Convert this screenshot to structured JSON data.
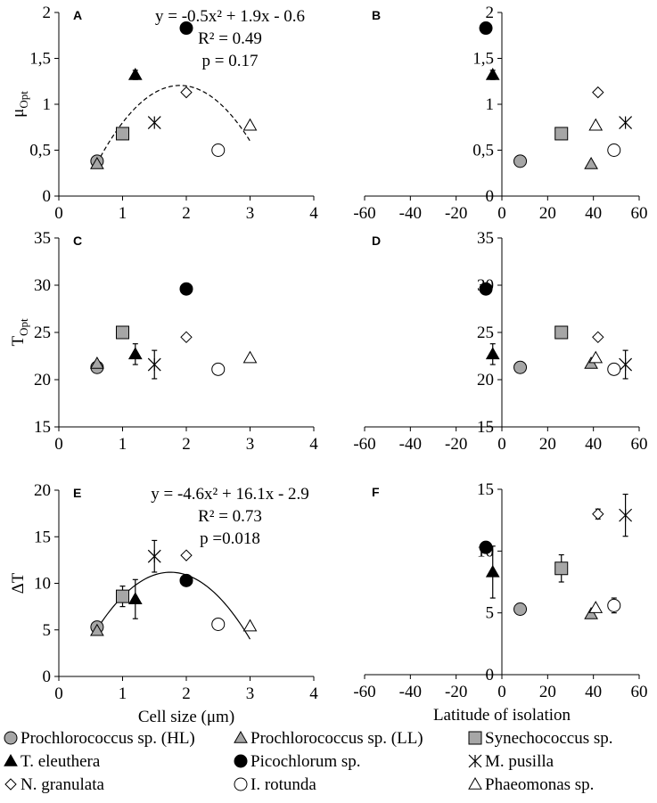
{
  "legend": [
    {
      "key": "proHL",
      "label": "Prochlorococcus sp. (HL)"
    },
    {
      "key": "proLL",
      "label": "Prochlorococcus sp. (LL)"
    },
    {
      "key": "syn",
      "label": "Synechococcus sp."
    },
    {
      "key": "tele",
      "label": "T. eleuthera"
    },
    {
      "key": "pic",
      "label": "Picochlorum sp."
    },
    {
      "key": "mpus",
      "label": "M. pusilla"
    },
    {
      "key": "ngra",
      "label": "N. granulata"
    },
    {
      "key": "irot",
      "label": "I. rotunda"
    },
    {
      "key": "phae",
      "label": "Phaeomonas sp."
    }
  ],
  "markers": {
    "proHL": {
      "shape": "circle",
      "fill": "#a6a6a6"
    },
    "proLL": {
      "shape": "triangle",
      "fill": "#a6a6a6"
    },
    "syn": {
      "shape": "square",
      "fill": "#a6a6a6"
    },
    "tele": {
      "shape": "triangle",
      "fill": "#000000"
    },
    "pic": {
      "shape": "circle",
      "fill": "#000000"
    },
    "mpus": {
      "shape": "asterisk",
      "fill": "none"
    },
    "ngra": {
      "shape": "diamond",
      "fill": "#ffffff"
    },
    "irot": {
      "shape": "circle",
      "fill": "#ffffff"
    },
    "phae": {
      "shape": "triangle",
      "fill": "#ffffff"
    }
  },
  "chart_data": [
    {
      "id": "A",
      "type": "scatter",
      "panel_label": "A",
      "ylabel": "μ",
      "ylabel_sub": "Opt",
      "xlabel": "",
      "xlim": [
        0,
        4
      ],
      "xticks": [
        0,
        1,
        2,
        3,
        4
      ],
      "ylim": [
        0,
        2
      ],
      "yticks": [
        0,
        0.5,
        1,
        1.5,
        2
      ],
      "ytick_labels": [
        "0",
        "0,5",
        "1",
        "1,5",
        "2"
      ],
      "fit": {
        "coef": [
          -0.5,
          1.9,
          -0.6
        ],
        "xrange": [
          0.6,
          3.0
        ],
        "dashed": true
      },
      "annotation": [
        "y = -0.5x² + 1.9x - 0.6",
        "R² = 0.49",
        "p = 0.17"
      ],
      "series": [
        {
          "key": "proHL",
          "points": [
            [
              0.6,
              0.38
            ]
          ]
        },
        {
          "key": "proLL",
          "points": [
            [
              0.6,
              0.35
            ]
          ]
        },
        {
          "key": "syn",
          "points": [
            [
              1.0,
              0.68
            ]
          ]
        },
        {
          "key": "tele",
          "points": [
            [
              1.2,
              1.32
            ]
          ],
          "err": [
            0.05
          ]
        },
        {
          "key": "pic",
          "points": [
            [
              2.0,
              1.83
            ]
          ]
        },
        {
          "key": "mpus",
          "points": [
            [
              1.5,
              0.8
            ]
          ]
        },
        {
          "key": "ngra",
          "points": [
            [
              2.0,
              1.13
            ]
          ]
        },
        {
          "key": "irot",
          "points": [
            [
              2.5,
              0.5
            ]
          ]
        },
        {
          "key": "phae",
          "points": [
            [
              3.0,
              0.77
            ]
          ]
        }
      ]
    },
    {
      "id": "B",
      "type": "scatter",
      "panel_label": "B",
      "ylabel": "",
      "xlabel": "",
      "xlim": [
        -60,
        60
      ],
      "xticks": [
        -60,
        -40,
        -20,
        0,
        20,
        40,
        60
      ],
      "ylim": [
        0,
        2
      ],
      "yticks": [
        0,
        0.5,
        1,
        1.5,
        2
      ],
      "ytick_labels": [
        "0",
        "0,5",
        "1",
        "1,5",
        "2"
      ],
      "series": [
        {
          "key": "proHL",
          "points": [
            [
              8,
              0.38
            ]
          ]
        },
        {
          "key": "proLL",
          "points": [
            [
              39,
              0.35
            ]
          ]
        },
        {
          "key": "syn",
          "points": [
            [
              26,
              0.68
            ]
          ]
        },
        {
          "key": "tele",
          "points": [
            [
              -4,
              1.32
            ]
          ],
          "err": [
            0.05
          ]
        },
        {
          "key": "pic",
          "points": [
            [
              -7,
              1.83
            ]
          ]
        },
        {
          "key": "mpus",
          "points": [
            [
              54,
              0.8
            ]
          ]
        },
        {
          "key": "ngra",
          "points": [
            [
              42,
              1.13
            ]
          ]
        },
        {
          "key": "irot",
          "points": [
            [
              49,
              0.5
            ]
          ]
        },
        {
          "key": "phae",
          "points": [
            [
              41,
              0.77
            ]
          ]
        }
      ]
    },
    {
      "id": "C",
      "type": "scatter",
      "panel_label": "C",
      "ylabel": "T",
      "ylabel_sub": "Opt",
      "xlabel": "",
      "xlim": [
        0,
        4
      ],
      "xticks": [
        0,
        1,
        2,
        3,
        4
      ],
      "ylim": [
        15,
        35
      ],
      "yticks": [
        15,
        20,
        25,
        30,
        35
      ],
      "ytick_labels": [
        "15",
        "20",
        "25",
        "30",
        "35"
      ],
      "series": [
        {
          "key": "proHL",
          "points": [
            [
              0.6,
              21.3
            ]
          ]
        },
        {
          "key": "proLL",
          "points": [
            [
              0.6,
              21.7
            ]
          ]
        },
        {
          "key": "syn",
          "points": [
            [
              1.0,
              25.0
            ]
          ],
          "err": [
            0.5
          ]
        },
        {
          "key": "tele",
          "points": [
            [
              1.2,
              22.7
            ]
          ],
          "err": [
            1.1
          ]
        },
        {
          "key": "pic",
          "points": [
            [
              2.0,
              29.6
            ]
          ]
        },
        {
          "key": "mpus",
          "points": [
            [
              1.5,
              21.6
            ]
          ],
          "err": [
            1.5
          ]
        },
        {
          "key": "ngra",
          "points": [
            [
              2.0,
              24.5
            ]
          ]
        },
        {
          "key": "irot",
          "points": [
            [
              2.5,
              21.1
            ]
          ]
        },
        {
          "key": "phae",
          "points": [
            [
              3.0,
              22.3
            ]
          ]
        }
      ]
    },
    {
      "id": "D",
      "type": "scatter",
      "panel_label": "D",
      "ylabel": "",
      "xlabel": "",
      "xlim": [
        -60,
        60
      ],
      "xticks": [
        -60,
        -40,
        -20,
        0,
        20,
        40,
        60
      ],
      "ylim": [
        15,
        35
      ],
      "yticks": [
        15,
        20,
        25,
        30,
        35
      ],
      "ytick_labels": [
        "15",
        "20",
        "25",
        "30",
        "35"
      ],
      "series": [
        {
          "key": "proHL",
          "points": [
            [
              8,
              21.3
            ]
          ]
        },
        {
          "key": "proLL",
          "points": [
            [
              39,
              21.7
            ]
          ]
        },
        {
          "key": "syn",
          "points": [
            [
              26,
              25.0
            ]
          ],
          "err": [
            0.5
          ]
        },
        {
          "key": "tele",
          "points": [
            [
              -4,
              22.7
            ]
          ],
          "err": [
            1.1
          ]
        },
        {
          "key": "pic",
          "points": [
            [
              -7,
              29.6
            ]
          ]
        },
        {
          "key": "mpus",
          "points": [
            [
              54,
              21.6
            ]
          ],
          "err": [
            1.5
          ]
        },
        {
          "key": "ngra",
          "points": [
            [
              42,
              24.5
            ]
          ]
        },
        {
          "key": "irot",
          "points": [
            [
              49,
              21.1
            ]
          ]
        },
        {
          "key": "phae",
          "points": [
            [
              41,
              22.3
            ]
          ]
        }
      ]
    },
    {
      "id": "E",
      "type": "scatter",
      "panel_label": "E",
      "ylabel": "ΔT",
      "xlabel": "Cell size (μm)",
      "xlim": [
        0,
        4
      ],
      "xticks": [
        0,
        1,
        2,
        3,
        4
      ],
      "ylim": [
        0,
        20
      ],
      "yticks": [
        0,
        5,
        10,
        15,
        20
      ],
      "ytick_labels": [
        "0",
        "5",
        "10",
        "15",
        "20"
      ],
      "fit": {
        "coef": [
          -4.6,
          16.1,
          -2.9
        ],
        "xrange": [
          0.6,
          3.0
        ],
        "dashed": false
      },
      "annotation": [
        "y = -4.6x² + 16.1x - 2.9",
        "R² = 0.73",
        "p =0.018"
      ],
      "series": [
        {
          "key": "proHL",
          "points": [
            [
              0.6,
              5.3
            ]
          ]
        },
        {
          "key": "proLL",
          "points": [
            [
              0.6,
              4.9
            ]
          ]
        },
        {
          "key": "syn",
          "points": [
            [
              1.0,
              8.6
            ]
          ],
          "err": [
            1.1
          ]
        },
        {
          "key": "tele",
          "points": [
            [
              1.2,
              8.3
            ]
          ],
          "err": [
            2.1
          ]
        },
        {
          "key": "pic",
          "points": [
            [
              2.0,
              10.3
            ]
          ]
        },
        {
          "key": "mpus",
          "points": [
            [
              1.5,
              12.9
            ]
          ],
          "err": [
            1.7
          ]
        },
        {
          "key": "ngra",
          "points": [
            [
              2.0,
              13.0
            ]
          ]
        },
        {
          "key": "irot",
          "points": [
            [
              2.5,
              5.6
            ]
          ]
        },
        {
          "key": "phae",
          "points": [
            [
              3.0,
              5.4
            ]
          ]
        }
      ]
    },
    {
      "id": "F",
      "type": "scatter",
      "panel_label": "F",
      "ylabel": "",
      "xlabel": "Latitude of isolation",
      "xlim": [
        -60,
        60
      ],
      "xticks": [
        -60,
        -40,
        -20,
        0,
        20,
        40,
        60
      ],
      "ylim": [
        0,
        15
      ],
      "yticks": [
        0,
        5,
        10,
        15
      ],
      "ytick_labels": [
        "0",
        "5",
        "10",
        "15"
      ],
      "series": [
        {
          "key": "proHL",
          "points": [
            [
              8,
              5.3
            ]
          ]
        },
        {
          "key": "proLL",
          "points": [
            [
              39,
              4.9
            ]
          ]
        },
        {
          "key": "syn",
          "points": [
            [
              26,
              8.6
            ]
          ],
          "err": [
            1.1
          ]
        },
        {
          "key": "tele",
          "points": [
            [
              -4,
              8.3
            ]
          ],
          "err": [
            2.1
          ]
        },
        {
          "key": "pic",
          "points": [
            [
              -7,
              10.3
            ]
          ],
          "err": [
            0.4
          ]
        },
        {
          "key": "mpus",
          "points": [
            [
              54,
              12.9
            ]
          ],
          "err": [
            1.7
          ]
        },
        {
          "key": "ngra",
          "points": [
            [
              42,
              13.0
            ]
          ],
          "err": [
            0.4
          ]
        },
        {
          "key": "irot",
          "points": [
            [
              49,
              5.6
            ]
          ],
          "err": [
            0.6
          ]
        },
        {
          "key": "phae",
          "points": [
            [
              41,
              5.4
            ]
          ]
        }
      ]
    }
  ]
}
